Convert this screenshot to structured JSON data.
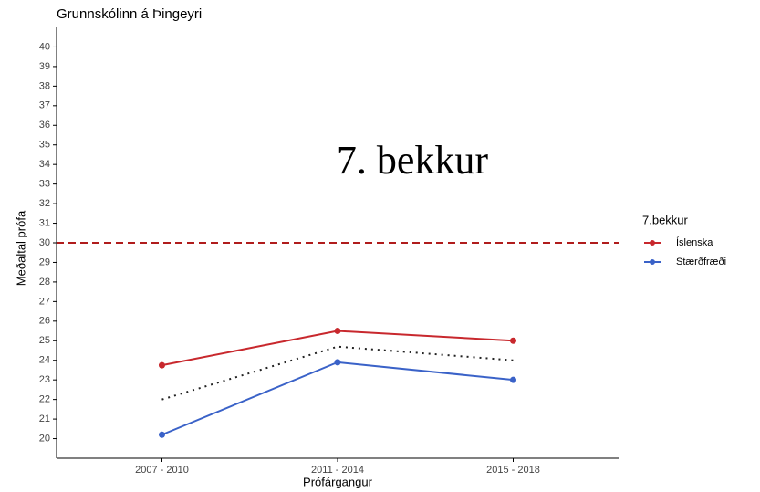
{
  "chart_data": {
    "type": "line",
    "title": "Grunnskólinn á Þingeyri",
    "annotation": "7. bekkur",
    "x_label": "Prófárgangur",
    "y_label": "Meðaltal prófa",
    "legend_title": "7.bekkur",
    "legend_position": "right",
    "categories": [
      "2007 - 2010",
      "2011 - 2014",
      "2015 - 2018"
    ],
    "series": [
      {
        "name": "Íslenska",
        "color": "#c8282d",
        "values": [
          23.75,
          25.5,
          25.0
        ]
      },
      {
        "name": "Stærðfræði",
        "color": "#3a62c8",
        "values": [
          20.2,
          23.9,
          23.0
        ]
      }
    ],
    "reference_series": {
      "color": "#222222",
      "dash": "dotted",
      "values": [
        22.0,
        24.7,
        24.0
      ]
    },
    "hline": {
      "value": 30,
      "color": "#b01c1c",
      "dash": "dashed"
    },
    "ylim": [
      19,
      41
    ],
    "yticks": [
      20,
      21,
      22,
      23,
      24,
      25,
      26,
      27,
      28,
      29,
      30,
      31,
      32,
      33,
      34,
      35,
      36,
      37,
      38,
      39,
      40
    ],
    "grid": false
  }
}
